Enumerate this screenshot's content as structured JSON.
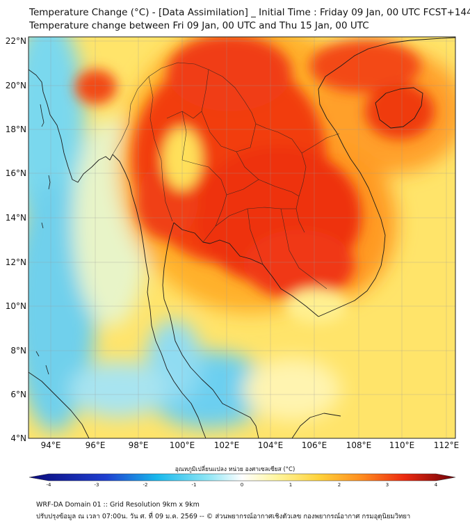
{
  "title_line1": "Temperature Change (°C) - [Data Assimilation] _ Initial Time : Friday 09 Jan, 00 UTC FCST+144",
  "title_line2": "Temperature change between Fri 09 Jan, 00 UTC and Thu 15 Jan, 00 UTC",
  "lat_labels": [
    "22°N",
    "20°N",
    "18°N",
    "16°N",
    "14°N",
    "12°N",
    "10°N",
    "8°N",
    "6°N",
    "4°N"
  ],
  "lon_labels": [
    "94°E",
    "96°E",
    "98°E",
    "100°E",
    "102°E",
    "104°E",
    "106°E",
    "108°E",
    "110°E",
    "112°E"
  ],
  "colorbar": {
    "label": "อุณหภูมิเปลี่ยนแปลง หน่วย องศาเซลเซียส (°C)",
    "ticks": [
      "-4",
      "-3",
      "-2",
      "-1",
      "0",
      "1",
      "2",
      "3",
      "4"
    ],
    "min": -4,
    "max": 4
  },
  "colors": {
    "strong_cooling": "#0a0a7a",
    "cooling": "#1ec8ee",
    "neutral": "#ffffff",
    "mild_warming": "#fff06e",
    "warming": "#ff8c1e",
    "strong_warming": "#6e0008"
  },
  "footer_line1": "WRF-DA Domain 01 :: Grid Resolution 9km x 9km",
  "footer_line2": "ปรับปรุงข้อมูล ณ เวลา 07:00น. วัน ศ. ที่ 09 ม.ค. 2569 -- © ส่วนพยากรณ์อากาศเชิงตัวเลข กองพยากรณ์อากาศ กรมอุตุนิยมวิทยา"
}
